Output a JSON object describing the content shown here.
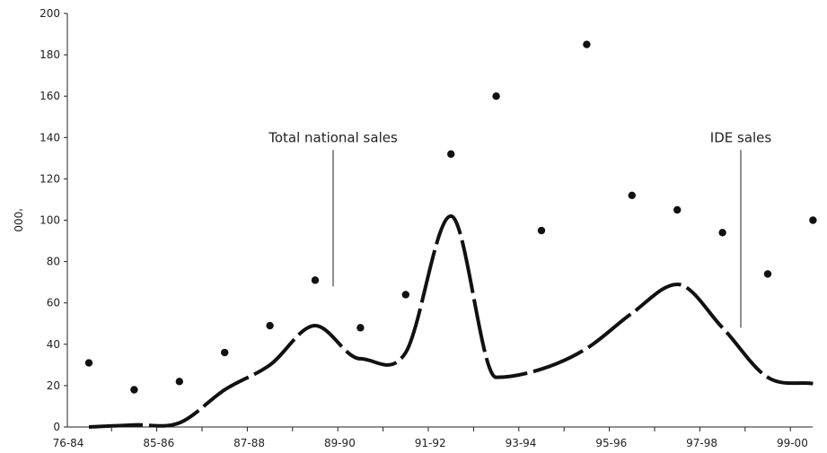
{
  "chart_data": {
    "type": "line",
    "ylabel": "'000",
    "xlabel": "",
    "ylim": [
      0,
      200
    ],
    "yticks": [
      0,
      20,
      40,
      60,
      80,
      100,
      120,
      140,
      160,
      180,
      200
    ],
    "ytick_labels": [
      "0",
      "20",
      "40",
      "60",
      "80",
      "100",
      "120",
      "140",
      "160",
      "180",
      "200"
    ],
    "x_tick_labels": [
      "76-84",
      "85-86",
      "87-88",
      "89-90",
      "91-92",
      "93-94",
      "95-96",
      "97-98",
      "99-00"
    ],
    "x": [
      "76-84",
      "84-85",
      "85-86",
      "86-87",
      "87-88",
      "88-89",
      "89-90",
      "90-91",
      "91-92",
      "92-93",
      "93-94",
      "94-95",
      "95-96",
      "96-97",
      "97-98",
      "98-99",
      "99-00"
    ],
    "series": [
      {
        "name": "Total national sales",
        "style": "dots",
        "color": "#111111",
        "values": [
          31,
          18,
          22,
          36,
          49,
          71,
          48,
          64,
          132,
          160,
          95,
          185,
          112,
          105,
          94,
          74,
          100
        ]
      },
      {
        "name": "IDE sales",
        "style": "dashed-line",
        "color": "#111111",
        "values": [
          0,
          1,
          2,
          18,
          30,
          49,
          33,
          36,
          102,
          24,
          28,
          38,
          55,
          69,
          48,
          24,
          21
        ]
      }
    ],
    "annotations": [
      {
        "text": "Total national sales",
        "target_series": 0
      },
      {
        "text": "IDE sales",
        "target_series": 1
      }
    ],
    "grid": false,
    "legend": "none"
  }
}
